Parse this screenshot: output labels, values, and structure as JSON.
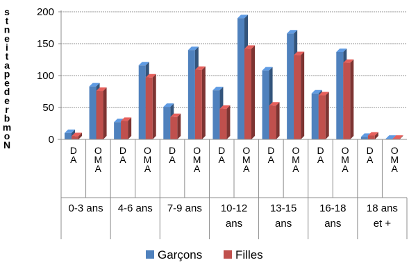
{
  "chart_data": {
    "type": "bar",
    "title": "",
    "ylabel": "Nombre de patients",
    "ylim": [
      0,
      200
    ],
    "yticks": [
      0,
      50,
      100,
      150,
      200
    ],
    "categories": [
      "DA",
      "OMA",
      "DA",
      "OMA",
      "DA",
      "OMA",
      "DA",
      "OMA",
      "DA",
      "OMA",
      "DA",
      "OMA",
      "DA",
      "OMA"
    ],
    "groups": [
      {
        "label": [
          "0-3 ans"
        ],
        "span": 2
      },
      {
        "label": [
          "4-6 ans"
        ],
        "span": 2
      },
      {
        "label": [
          "7-9 ans"
        ],
        "span": 2
      },
      {
        "label": [
          "10-12",
          "ans"
        ],
        "span": 2
      },
      {
        "label": [
          "13-15",
          "ans"
        ],
        "span": 2
      },
      {
        "label": [
          "16-18",
          "ans"
        ],
        "span": 2
      },
      {
        "label": [
          "18 ans",
          "et +"
        ],
        "span": 2
      }
    ],
    "series": [
      {
        "name": "Garçons",
        "color": "#4F81BD",
        "values": [
          10,
          83,
          27,
          116,
          51,
          140,
          77,
          190,
          108,
          166,
          72,
          137,
          4,
          1
        ]
      },
      {
        "name": "Filles",
        "color": "#C0504D",
        "values": [
          5,
          76,
          29,
          97,
          35,
          109,
          48,
          142,
          53,
          132,
          69,
          120,
          6,
          1
        ]
      }
    ],
    "grid": true,
    "legend": "bottom"
  }
}
